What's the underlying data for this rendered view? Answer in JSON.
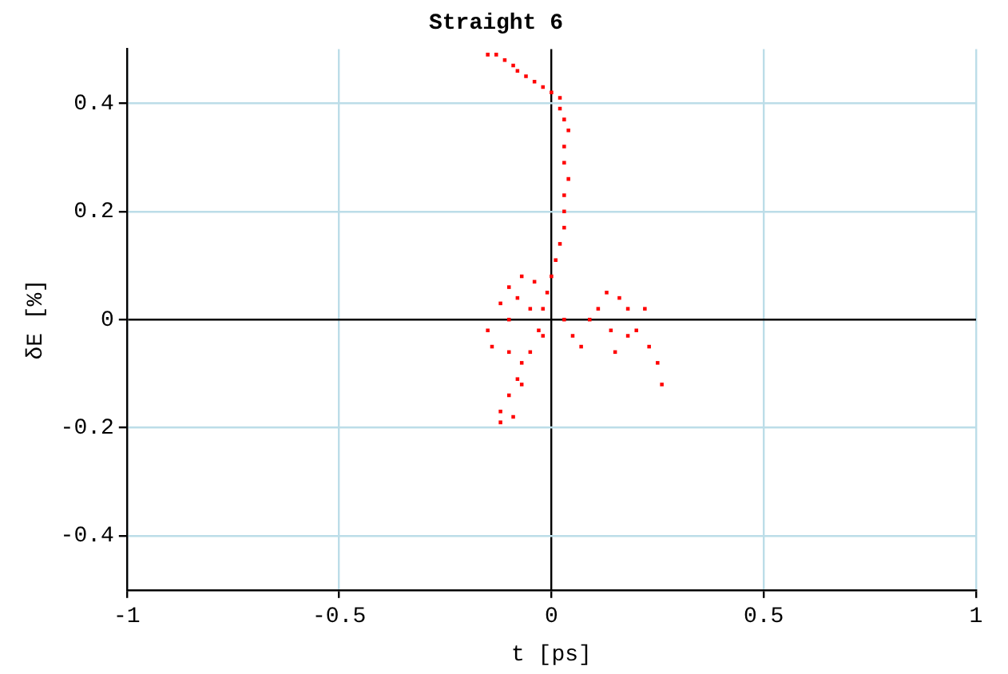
{
  "chart_data": {
    "type": "scatter",
    "title": "Straight 6",
    "xlabel": "t [ps]",
    "ylabel": "δE [%]",
    "xlim": [
      -1,
      1
    ],
    "ylim": [
      -0.5,
      0.5
    ],
    "xticks": [
      -1,
      -0.5,
      0,
      0.5,
      1
    ],
    "yticks": [
      -0.4,
      -0.2,
      0,
      0.2,
      0.4
    ],
    "grid": true,
    "marker": "square",
    "legend": false,
    "series": [
      {
        "color": "#ff0000",
        "x": [
          -0.15,
          -0.13,
          -0.11,
          -0.09,
          -0.08,
          -0.06,
          -0.04,
          -0.02,
          0,
          0.02,
          0.02,
          0.03,
          0.04,
          0.03,
          0.03,
          0.04,
          0.03,
          0.03,
          0.03,
          0.02,
          0.01,
          0,
          -0.01,
          -0.02,
          -0.07,
          -0.1,
          -0.04,
          -0.12,
          -0.08,
          -0.15,
          -0.14,
          -0.1,
          -0.05,
          -0.03,
          -0.1,
          -0.07,
          -0.08,
          -0.1,
          -0.12,
          -0.12,
          -0.09,
          -0.07,
          -0.05,
          -0.02,
          0.03,
          0.05,
          0.07,
          0.09,
          0.11,
          0.13,
          0.16,
          0.18,
          0.14,
          0.15,
          0.18,
          0.2,
          0.22,
          0.23,
          0.25,
          0.26
        ],
        "values": [
          0.49,
          0.49,
          0.48,
          0.47,
          0.46,
          0.45,
          0.44,
          0.43,
          0.42,
          0.41,
          0.39,
          0.37,
          0.35,
          0.32,
          0.29,
          0.26,
          0.23,
          0.2,
          0.17,
          0.14,
          0.11,
          0.08,
          0.05,
          0.02,
          0.08,
          0.06,
          0.07,
          0.03,
          0.04,
          -0.02,
          -0.05,
          0,
          0.02,
          -0.02,
          -0.06,
          -0.08,
          -0.11,
          -0.14,
          -0.17,
          -0.19,
          -0.18,
          -0.12,
          -0.06,
          -0.03,
          0,
          -0.03,
          -0.05,
          0,
          0.02,
          0.05,
          0.04,
          0.02,
          -0.02,
          -0.06,
          -0.03,
          -0.02,
          0.02,
          -0.05,
          -0.08,
          -0.12
        ]
      }
    ]
  }
}
